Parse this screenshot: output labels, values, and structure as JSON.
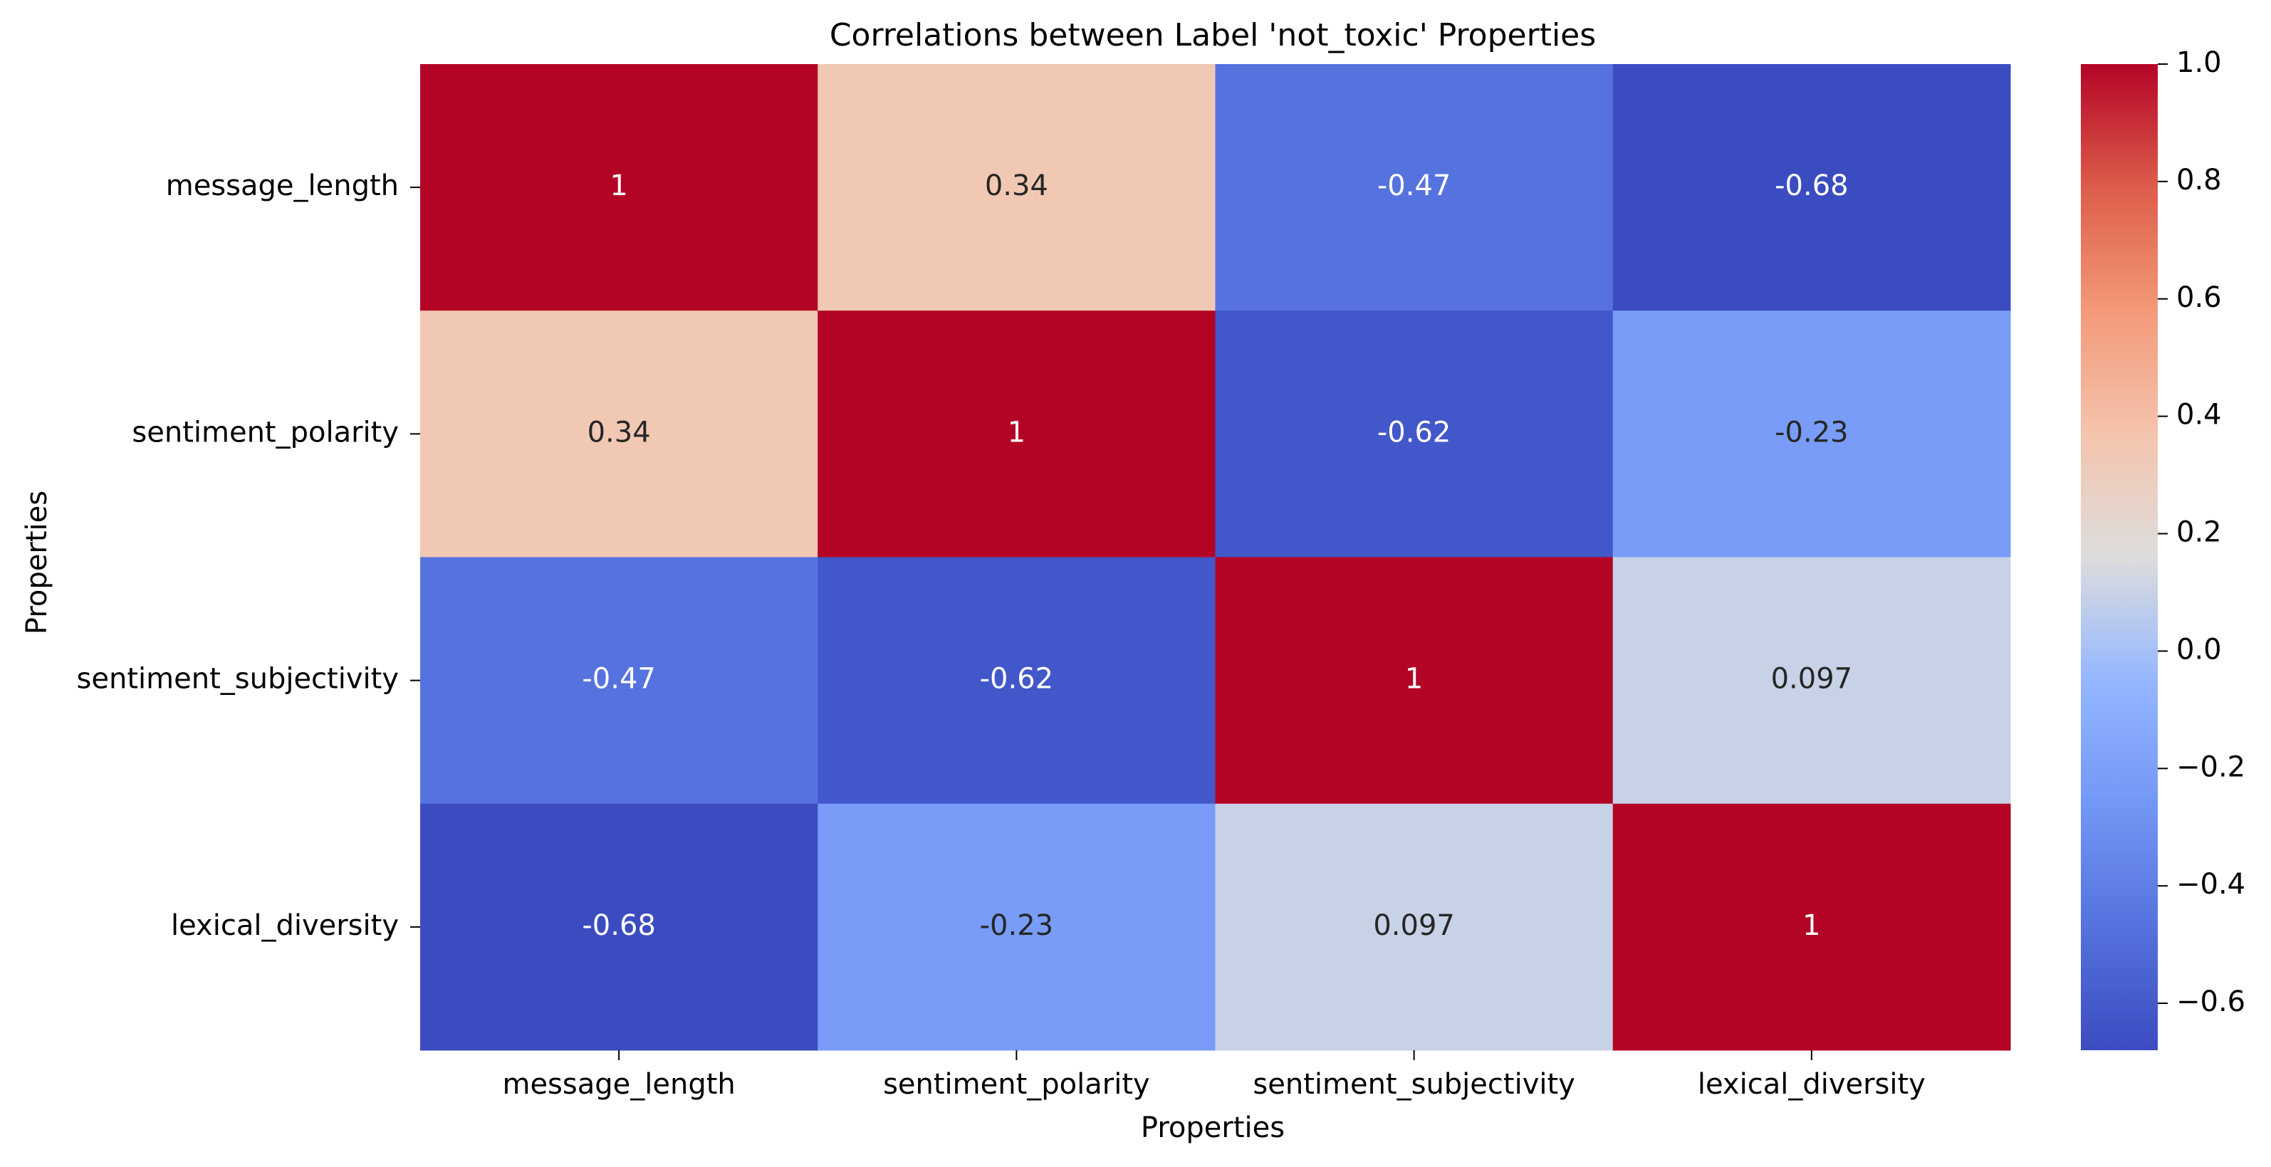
{
  "chart_data": {
    "type": "heatmap",
    "title": "Correlations between Label 'not_toxic' Properties",
    "xlabel": "Properties",
    "ylabel": "Properties",
    "x_categories": [
      "message_length",
      "sentiment_polarity",
      "sentiment_subjectivity",
      "lexical_diversity"
    ],
    "y_categories": [
      "message_length",
      "sentiment_polarity",
      "sentiment_subjectivity",
      "lexical_diversity"
    ],
    "values": [
      [
        1,
        0.34,
        -0.47,
        -0.68
      ],
      [
        0.34,
        1,
        -0.62,
        -0.23
      ],
      [
        -0.47,
        -0.62,
        1,
        0.097
      ],
      [
        -0.68,
        -0.23,
        0.097,
        1
      ]
    ],
    "annotations": [
      [
        "1",
        "0.34",
        "-0.47",
        "-0.68"
      ],
      [
        "0.34",
        "1",
        "-0.62",
        "-0.23"
      ],
      [
        "-0.47",
        "-0.62",
        "1",
        "0.097"
      ],
      [
        "-0.68",
        "-0.23",
        "0.097",
        "1"
      ]
    ],
    "colormap": "coolwarm",
    "colorbar": {
      "range": [
        -0.68,
        1.0
      ],
      "ticks": [
        1.0,
        0.8,
        0.6,
        0.4,
        0.2,
        0.0,
        -0.2,
        -0.4,
        -0.6
      ],
      "tick_labels": [
        "1.0",
        "0.8",
        "0.6",
        "0.4",
        "0.2",
        "0.0",
        "−0.2",
        "−0.4",
        "−0.6"
      ]
    },
    "colors": {
      "text_on_dark": "#ffffff",
      "text_on_light": "#262626",
      "axis": "#000000"
    }
  }
}
